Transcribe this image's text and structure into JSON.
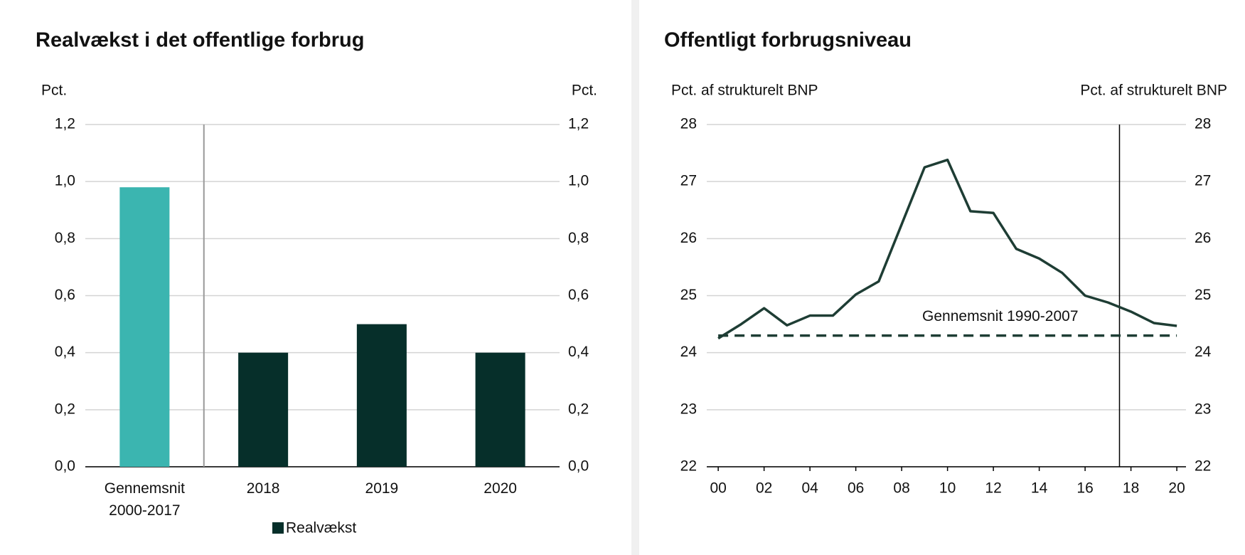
{
  "chart_data": [
    {
      "type": "bar",
      "title": "Realvækst i det offentlige forbrug",
      "y_label": "Pct.",
      "y2_label": "Pct.",
      "categories": [
        "Gennemsnit 2000-2017",
        "2018",
        "2019",
        "2020"
      ],
      "series": [
        {
          "name": "Realvækst",
          "color": "#062f2a",
          "colors": [
            "#3bb5b0",
            "#062f2a",
            "#062f2a",
            "#062f2a"
          ],
          "values": [
            0.98,
            0.4,
            0.5,
            0.4
          ]
        }
      ],
      "ylim": [
        0,
        1.2
      ],
      "yticks": [
        {
          "value": 0,
          "label": "0,0"
        },
        {
          "value": 0.2,
          "label": "0,2"
        },
        {
          "value": 0.4,
          "label": "0,4"
        },
        {
          "value": 0.6,
          "label": "0,6"
        },
        {
          "value": 0.8,
          "label": "0,8"
        },
        {
          "value": 1.0,
          "label": "1,0"
        },
        {
          "value": 1.2,
          "label": "1,2"
        }
      ],
      "y2lim": [
        0,
        1.2
      ],
      "y2ticks": [
        {
          "value": 0,
          "label": "0,0"
        },
        {
          "value": 0.2,
          "label": "0,2"
        },
        {
          "value": 0.4,
          "label": "0,4"
        },
        {
          "value": 0.6,
          "label": "0,6"
        },
        {
          "value": 0.8,
          "label": "0,8"
        },
        {
          "value": 1.0,
          "label": "1,0"
        },
        {
          "value": 1.2,
          "label": "1,2"
        }
      ],
      "grid": true
    },
    {
      "type": "line",
      "title": "Offentligt forbrugsniveau",
      "y_label": "Pct. af strukturelt BNP",
      "y2_label": "Pct. af strukturelt BNP",
      "x": [
        2000,
        2001,
        2002,
        2003,
        2004,
        2005,
        2006,
        2007,
        2008,
        2009,
        2010,
        2011,
        2012,
        2013,
        2014,
        2015,
        2016,
        2017,
        2018,
        2019,
        2020
      ],
      "series": [
        {
          "name": "Offentligt forbrugsniveau",
          "color": "#1e3d34",
          "values": [
            24.25,
            24.5,
            24.78,
            24.48,
            24.65,
            24.65,
            25.02,
            25.25,
            26.25,
            27.25,
            27.38,
            26.48,
            26.45,
            25.82,
            25.65,
            25.4,
            25.0,
            24.88,
            24.72,
            24.52,
            24.47
          ]
        }
      ],
      "reference_line": {
        "label": "Gennemsnit 1990-2007",
        "value": 24.3,
        "color": "#1e3d34"
      },
      "vline": 2017.5,
      "xlim": [
        1999.5,
        2020.4
      ],
      "xticks": [
        {
          "value": 2000,
          "label": "00"
        },
        {
          "value": 2002,
          "label": "02"
        },
        {
          "value": 2004,
          "label": "04"
        },
        {
          "value": 2006,
          "label": "06"
        },
        {
          "value": 2008,
          "label": "08"
        },
        {
          "value": 2010,
          "label": "10"
        },
        {
          "value": 2012,
          "label": "12"
        },
        {
          "value": 2014,
          "label": "14"
        },
        {
          "value": 2016,
          "label": "16"
        },
        {
          "value": 2018,
          "label": "18"
        },
        {
          "value": 2020,
          "label": "20"
        }
      ],
      "ylim": [
        22,
        28
      ],
      "yticks": [
        22,
        23,
        24,
        25,
        26,
        27,
        28
      ],
      "y2lim": [
        22,
        28
      ],
      "y2ticks": [
        22,
        23,
        24,
        25,
        26,
        27,
        28
      ],
      "grid": true
    }
  ]
}
